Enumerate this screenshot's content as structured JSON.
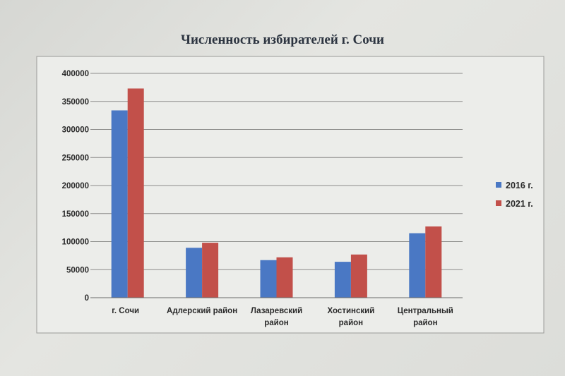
{
  "chart_data": {
    "type": "bar",
    "title": "Численность избирателей г. Сочи",
    "xlabel": "",
    "ylabel": "",
    "categories": [
      [
        "г. Сочи"
      ],
      [
        "Адлерский район"
      ],
      [
        "Лазаревский",
        "район"
      ],
      [
        "Хостинский",
        "район"
      ],
      [
        "Центральный",
        "район"
      ]
    ],
    "series": [
      {
        "name": "2016 г.",
        "color": "#4a78c4",
        "values": [
          334000,
          89000,
          67000,
          64000,
          115000
        ]
      },
      {
        "name": "2021 г.",
        "color": "#c2504a",
        "values": [
          373000,
          98000,
          72000,
          77000,
          127000
        ]
      }
    ],
    "ylim": [
      0,
      400000
    ],
    "yticks": [
      "0",
      "50000",
      "100000",
      "150000",
      "200000",
      "250000",
      "300000",
      "350000",
      "400000"
    ],
    "grid": true,
    "legend": "right"
  }
}
